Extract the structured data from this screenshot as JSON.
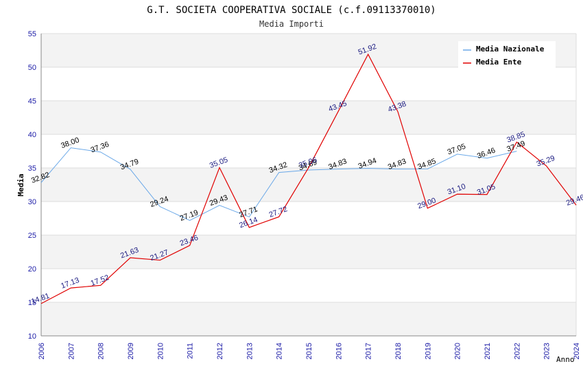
{
  "chart_data": {
    "type": "line",
    "title": "G.T. SOCIETA COOPERATIVA SOCIALE (c.f.09113370010)",
    "subtitle": "Media Importi",
    "xlabel": "Anno",
    "ylabel": "Media",
    "ylim": [
      10,
      55
    ],
    "yticks": [
      "10",
      "15",
      "20",
      "25",
      "30",
      "35",
      "40",
      "45",
      "50",
      "55"
    ],
    "categories": [
      "2006",
      "2007",
      "2008",
      "2009",
      "2010",
      "2011",
      "2012",
      "2013",
      "2014",
      "2015",
      "2016",
      "2017",
      "2018",
      "2019",
      "2020",
      "2021",
      "2022",
      "2023",
      "2024"
    ],
    "grid": true,
    "legend": "top-right",
    "series": [
      {
        "name": "Media Nazionale",
        "color": "#6aa8e8",
        "values": [
          32.82,
          38.0,
          37.36,
          34.79,
          29.24,
          27.19,
          29.43,
          27.71,
          34.32,
          34.69,
          34.83,
          34.94,
          34.83,
          34.85,
          37.05,
          36.46,
          37.49,
          null,
          null
        ],
        "labels": [
          "32.82",
          "38.00",
          "37.36",
          "34.79",
          "29.24",
          "27.19",
          "29.43",
          "27.71",
          "34.32",
          "34.69",
          "34.83",
          "34.94",
          "34.83",
          "34.85",
          "37.05",
          "36.46",
          "37.49",
          "",
          ""
        ]
      },
      {
        "name": "Media Ente",
        "color": "#e00000",
        "values": [
          14.81,
          17.13,
          17.52,
          21.63,
          21.27,
          23.46,
          35.05,
          26.14,
          27.72,
          35.06,
          43.45,
          51.92,
          43.38,
          29.0,
          31.1,
          31.05,
          38.85,
          35.29,
          29.46
        ],
        "labels": [
          "14.81",
          "17.13",
          "17.52",
          "21.63",
          "21.27",
          "23.46",
          "35.05",
          "26.14",
          "27.72",
          "35.06",
          "43.45",
          "51.92",
          "43.38",
          "29.00",
          "31.10",
          "31.05",
          "38.85",
          "35.29",
          "29.46"
        ]
      }
    ]
  }
}
